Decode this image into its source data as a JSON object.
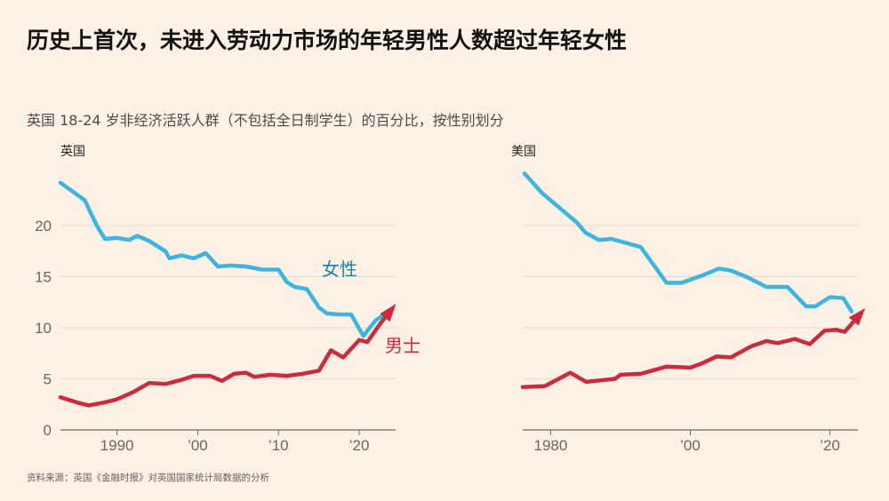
{
  "title": "历史上首次，未进入劳动力市场的年轻男性人数超过年轻女性",
  "subtitle": "英国 18-24 岁非经济活跃人群（不包括全日制学生）的百分比，按性别划分",
  "source": "资料来源：英国《金融时报》对英国国家统计局数据的分析",
  "colors": {
    "women": "#3db5df",
    "men": "#cd2b3c",
    "women_label": "#1c7fa8",
    "men_label": "#cd2b3c",
    "background": "#fdf1e6"
  },
  "chart_data": [
    {
      "type": "line",
      "title": "英国",
      "ylim": [
        0,
        25
      ],
      "yticks": [
        0,
        5,
        10,
        15,
        20
      ],
      "ytick_labels": [
        "0",
        "5",
        "10",
        "15",
        "20"
      ],
      "xlim": [
        1983,
        2024.5
      ],
      "xticks": [
        1990,
        2000,
        2010,
        2020
      ],
      "xtick_labels": [
        "1990",
        "’00",
        "’10",
        "’20"
      ],
      "grid": true,
      "series": [
        {
          "name": "女性",
          "x": [
            1983,
            1986,
            1987.5,
            1988.5,
            1990,
            1991.5,
            1992.5,
            1994,
            1996,
            1996.5,
            1998,
            1999.5,
            2001,
            2002.5,
            2004,
            2006,
            2008,
            2010,
            2011,
            2012,
            2013.5,
            2015,
            2016,
            2017.5,
            2019,
            2020.5,
            2022,
            2023.5
          ],
          "y": [
            24.2,
            22.5,
            20,
            18.7,
            18.8,
            18.6,
            19,
            18.5,
            17.5,
            16.8,
            17.1,
            16.8,
            17.3,
            16,
            16.1,
            16,
            15.7,
            15.7,
            14.5,
            14,
            13.8,
            12,
            11.4,
            11.3,
            11.3,
            9.2,
            10.7,
            11.5
          ]
        },
        {
          "name": "男士",
          "x": [
            1983,
            1985,
            1986.5,
            1988.5,
            1990,
            1992,
            1994,
            1996,
            1998,
            1999.5,
            2001.5,
            2003,
            2004.5,
            2006,
            2007,
            2009,
            2011,
            2013,
            2015,
            2016.5,
            2018,
            2020,
            2021,
            2022.5,
            2024
          ],
          "y": [
            3.2,
            2.7,
            2.4,
            2.7,
            3.0,
            3.7,
            4.6,
            4.5,
            4.9,
            5.3,
            5.3,
            4.8,
            5.5,
            5.6,
            5.2,
            5.4,
            5.3,
            5.5,
            5.8,
            7.8,
            7.1,
            8.8,
            8.6,
            10.3,
            11.8
          ]
        }
      ]
    },
    {
      "type": "line",
      "title": "美国",
      "ylim": [
        0,
        25
      ],
      "yticks": [
        0,
        5,
        10,
        15,
        20
      ],
      "xlim": [
        1976,
        2024
      ],
      "xticks": [
        1980,
        2000,
        2020
      ],
      "xtick_labels": [
        "1980",
        "’00",
        "’20"
      ],
      "grid": true,
      "series": [
        {
          "name": "女性",
          "x": [
            1976.25,
            1978.75,
            1983.75,
            1985,
            1986.9,
            1988.75,
            1992.9,
            1996.6,
            1998.75,
            2001.6,
            2004.1,
            2005.8,
            2008,
            2010.9,
            2013.9,
            2016.6,
            2017.9,
            2020,
            2021.9,
            2023.1
          ],
          "y": [
            25.1,
            23.2,
            20.3,
            19.3,
            18.6,
            18.7,
            17.9,
            14.4,
            14.4,
            15.1,
            15.8,
            15.6,
            15.0,
            14.0,
            14.0,
            12.1,
            12.1,
            13.0,
            12.9,
            11.6
          ]
        },
        {
          "name": "男士",
          "x": [
            1976,
            1979.2,
            1982.8,
            1985.1,
            1989.2,
            1990,
            1992.9,
            1996.6,
            2000,
            2001.6,
            2003.8,
            2005.8,
            2008.75,
            2010.9,
            2012.5,
            2015,
            2017.1,
            2019.2,
            2020.9,
            2022.1,
            2024.4
          ],
          "y": [
            4.2,
            4.3,
            5.6,
            4.7,
            5.0,
            5.4,
            5.5,
            6.2,
            6.1,
            6.5,
            7.2,
            7.1,
            8.2,
            8.7,
            8.5,
            8.9,
            8.4,
            9.7,
            9.8,
            9.6,
            11.4
          ]
        }
      ]
    }
  ]
}
